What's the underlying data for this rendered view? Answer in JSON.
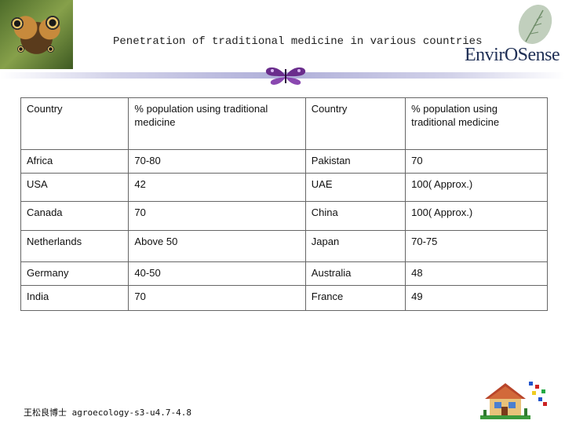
{
  "header": {
    "title": "Penetration of traditional medicine in various countries",
    "logo_text": "EnvirOSense"
  },
  "table": {
    "headers": [
      "Country",
      "% population using traditional medicine",
      "Country",
      "% population using traditional medicine"
    ],
    "rows": [
      [
        "Africa",
        "70-80",
        "Pakistan",
        "70"
      ],
      [
        "USA",
        "42",
        "UAE",
        "100( Approx.)"
      ],
      [
        "Canada",
        "70",
        "China",
        "100( Approx.)"
      ],
      [
        "Netherlands",
        "Above 50",
        "Japan",
        "70-75"
      ],
      [
        "Germany",
        "40-50",
        "Australia",
        "48"
      ],
      [
        "India",
        "70",
        "France",
        "49"
      ]
    ]
  },
  "footer": {
    "text": "王松良博士 agroecology-s3-u4.7-4.8"
  },
  "icons": {
    "photo": "butterfly-photo",
    "divider_ornament": "butterfly-icon",
    "logo": "leaf-icon",
    "corner_decoration": "house-icon"
  }
}
